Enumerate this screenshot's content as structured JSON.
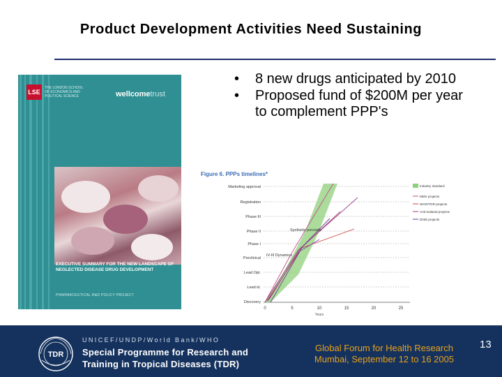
{
  "slide": {
    "title": "Product Development Activities Need Sustaining",
    "page_number": "13"
  },
  "bullets": [
    {
      "text": "8 new drugs anticipated by 2010"
    },
    {
      "text": "Proposed fund of $200M per year to complement PPP's"
    }
  ],
  "report_cover": {
    "logo": "LSE",
    "lse_subtitle": "THE LONDON SCHOOL OF ECONOMICS AND POLITICAL SCIENCE",
    "partner": "wellcome",
    "partner_suffix": "trust",
    "exec_summary": "EXECUTIVE SUMMARY FOR THE NEW LANDSCAPE OF NEGLECTED DISEASE DRUG DEVELOPMENT",
    "project": "PHARMACEUTICAL R&D POLICY PROJECT"
  },
  "figure": {
    "title": "Figure 6. PPPs timelines*",
    "stages": [
      "Marketing approval",
      "Registration",
      "Phase III",
      "Phase II",
      "Phase I",
      "Preclinical",
      "Lead Opt.",
      "Lead id.",
      "Discovery"
    ],
    "x_ticks": [
      "0",
      "5",
      "10",
      "15",
      "20",
      "25"
    ],
    "x_label": "Years",
    "annotations": [
      "Synthetic peroxide",
      "IV-III Dynamics"
    ],
    "legend": [
      "Industry standard",
      "MMV projects",
      "WHO/TDR projects",
      "Anti-malarial projects",
      "DNDi projects"
    ]
  },
  "footer": {
    "org_line1": "UNICEF/UNDP/World Bank/WHO",
    "org_line2": "Special Programme for Research and",
    "org_line3": "Training in Tropical Diseases (TDR)",
    "emblem_text": "TDR",
    "event_line1": "Global Forum for Health Research",
    "event_line2": "Mumbai, September 12 to 16 2005"
  },
  "colors": {
    "footer_bg": "#15325e",
    "event_text": "#e9a11a",
    "title_rule": "#1a2a6c",
    "cover_teal": "#2f8f92",
    "industry_band": "#8fd07a"
  }
}
